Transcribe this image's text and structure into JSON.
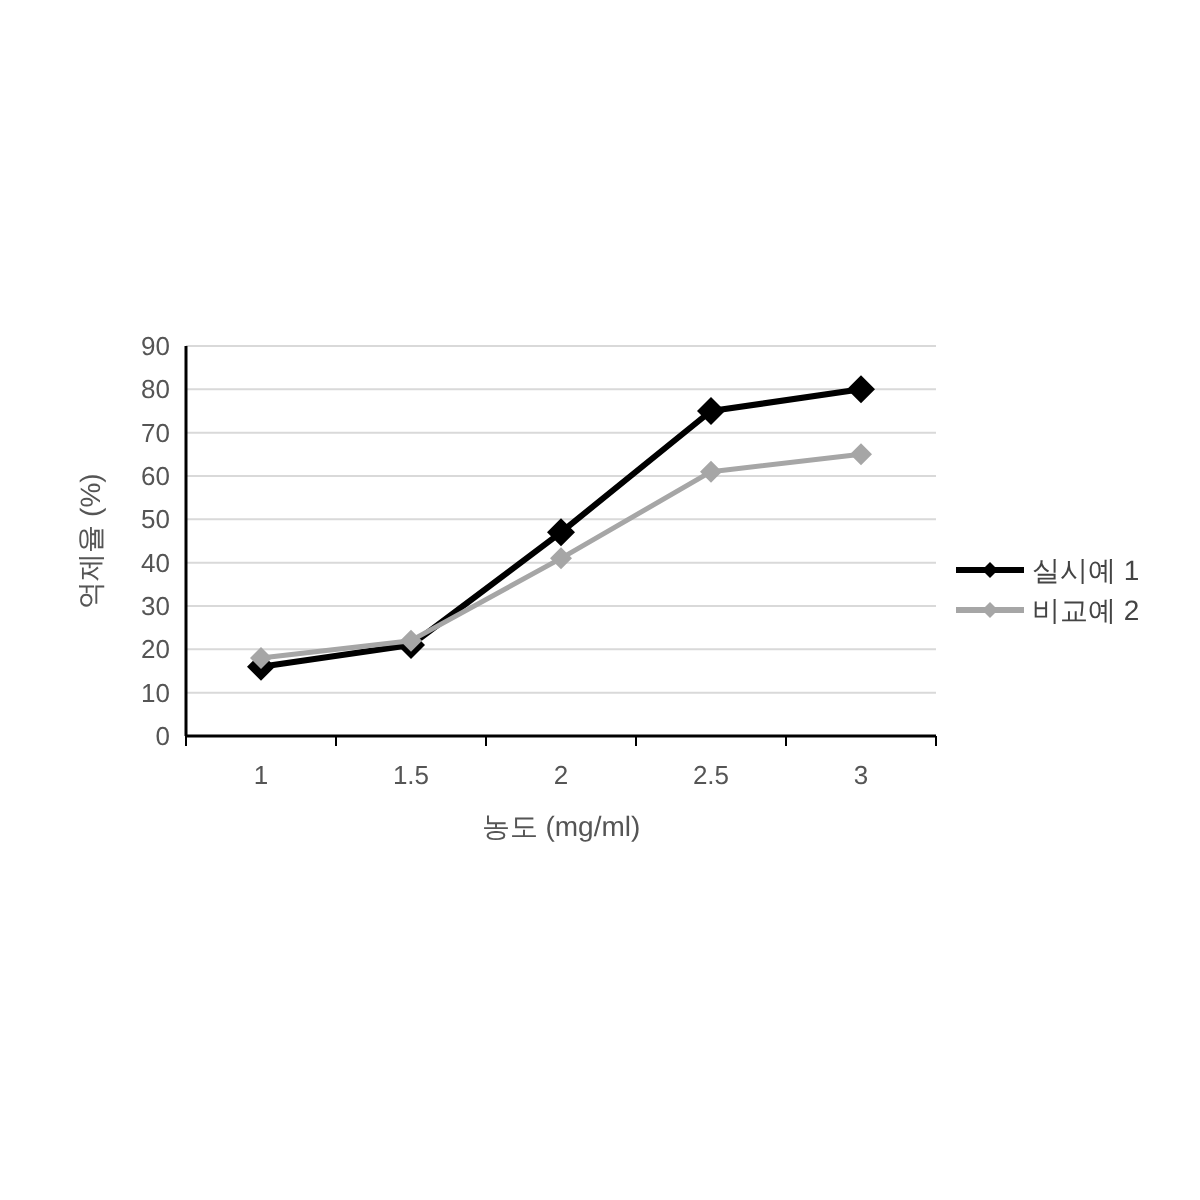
{
  "chart_data": {
    "type": "line",
    "xlabel": "농도 (mg/ml)",
    "ylabel": "억제율 (%)",
    "categories": [
      "1",
      "1.5",
      "2",
      "2.5",
      "3"
    ],
    "series": [
      {
        "name": "실시예 1",
        "color": "#000000",
        "values": [
          16,
          21,
          47,
          75,
          80
        ]
      },
      {
        "name": "비교예 2",
        "color": "#a6a6a6",
        "values": [
          18,
          22,
          41,
          61,
          65
        ]
      }
    ],
    "ylim": [
      0,
      90
    ],
    "yticks": [
      0,
      10,
      20,
      30,
      40,
      50,
      60,
      70,
      80,
      90
    ],
    "grid": "y",
    "legend": "right",
    "marker": "diamond",
    "line_style": "solid"
  }
}
